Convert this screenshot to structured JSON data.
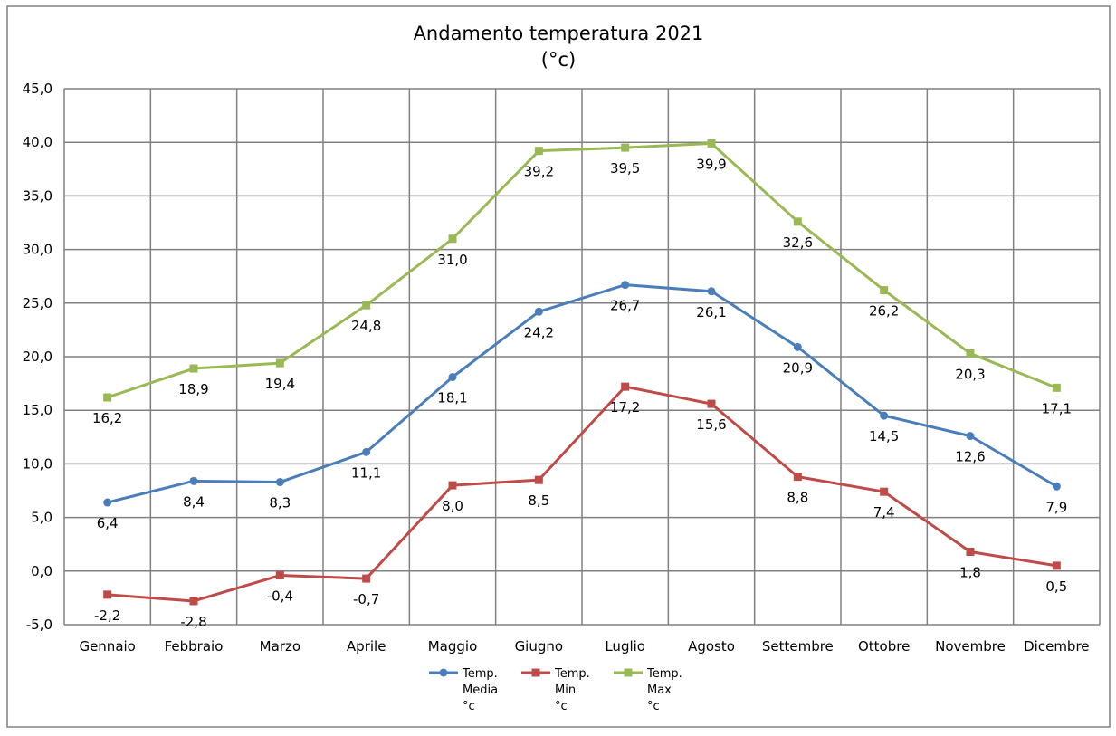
{
  "chart_data": {
    "type": "line",
    "title": "Andamento temperatura 2021",
    "subtitle": "(°c)",
    "categories": [
      "Gennaio",
      "Febbraio",
      "Marzo",
      "Aprile",
      "Maggio",
      "Giugno",
      "Luglio",
      "Agosto",
      "Settembre",
      "Ottobre",
      "Novembre",
      "Dicembre"
    ],
    "y_ticks": [
      "45,0",
      "40,0",
      "35,0",
      "30,0",
      "25,0",
      "20,0",
      "15,0",
      "10,0",
      "5,0",
      "0,0",
      "-5,0"
    ],
    "ylim": [
      -5,
      45
    ],
    "grid": true,
    "legend_position": "bottom",
    "series": [
      {
        "name_lines": [
          "Temp.",
          "Media",
          "°c"
        ],
        "color": "#4a7ebb",
        "marker": "circle",
        "values": [
          6.4,
          8.4,
          8.3,
          11.1,
          18.1,
          24.2,
          26.7,
          26.1,
          20.9,
          14.5,
          12.6,
          7.9
        ],
        "labels": [
          "6,4",
          "8,4",
          "8,3",
          "11,1",
          "18,1",
          "24,2",
          "26,7",
          "26,1",
          "20,9",
          "14,5",
          "12,6",
          "7,9"
        ]
      },
      {
        "name_lines": [
          "Temp.",
          "Min",
          "°c"
        ],
        "color": "#be4b48",
        "marker": "square",
        "values": [
          -2.2,
          -2.8,
          -0.4,
          -0.7,
          8.0,
          8.5,
          17.2,
          15.6,
          8.8,
          7.4,
          1.8,
          0.5
        ],
        "labels": [
          "-2,2",
          "-2,8",
          "-0,4",
          "-0,7",
          "8,0",
          "8,5",
          "17,2",
          "15,6",
          "8,8",
          "7,4",
          "1,8",
          "0,5"
        ]
      },
      {
        "name_lines": [
          "Temp.",
          "Max",
          "°c"
        ],
        "color": "#98b954",
        "marker": "square",
        "values": [
          16.2,
          18.9,
          19.4,
          24.8,
          31.0,
          39.2,
          39.5,
          39.9,
          32.6,
          26.2,
          20.3,
          17.1
        ],
        "labels": [
          "16,2",
          "18,9",
          "19,4",
          "24,8",
          "31,0",
          "39,2",
          "39,5",
          "39,9",
          "32,6",
          "26,2",
          "20,3",
          "17,1"
        ]
      }
    ]
  }
}
